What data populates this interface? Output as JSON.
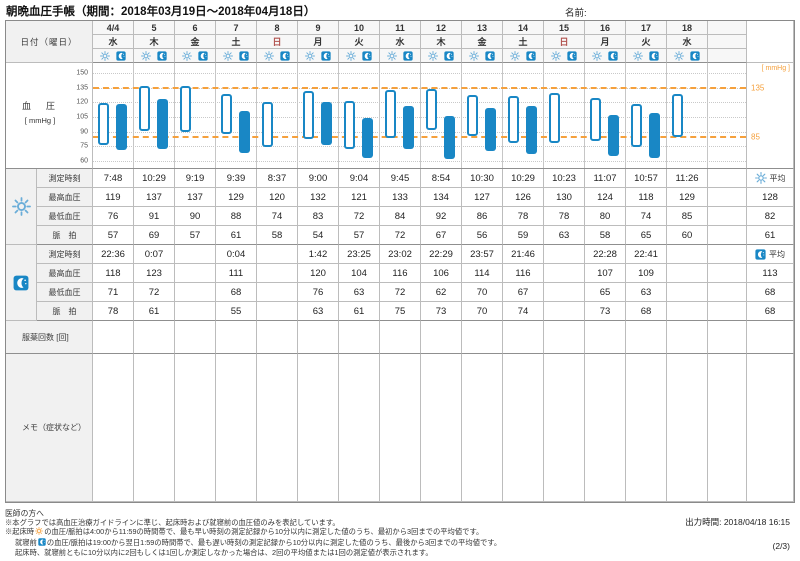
{
  "title": "朝晩血圧手帳（期間：2018年03月19日～2018年04月18日）",
  "name_label": "名前:",
  "header": {
    "date_label": "日付（曜日）",
    "days": [
      {
        "date": "4/4",
        "dow": "水",
        "sunday": false
      },
      {
        "date": "5",
        "dow": "木",
        "sunday": false
      },
      {
        "date": "6",
        "dow": "金",
        "sunday": false
      },
      {
        "date": "7",
        "dow": "土",
        "sunday": false
      },
      {
        "date": "8",
        "dow": "日",
        "sunday": true
      },
      {
        "date": "9",
        "dow": "月",
        "sunday": false
      },
      {
        "date": "10",
        "dow": "火",
        "sunday": false
      },
      {
        "date": "11",
        "dow": "水",
        "sunday": false
      },
      {
        "date": "12",
        "dow": "木",
        "sunday": false
      },
      {
        "date": "13",
        "dow": "金",
        "sunday": false
      },
      {
        "date": "14",
        "dow": "土",
        "sunday": false
      },
      {
        "date": "15",
        "dow": "日",
        "sunday": true
      },
      {
        "date": "16",
        "dow": "月",
        "sunday": false
      },
      {
        "date": "17",
        "dow": "火",
        "sunday": false
      },
      {
        "date": "18",
        "dow": "水",
        "sunday": false
      }
    ]
  },
  "chart": {
    "type": "range-bar",
    "ylabel": "血　圧",
    "yunit": "[ mmHg ]",
    "unit_label": "[ mmHg ]",
    "ymin": 60,
    "ymax": 150,
    "yticks": [
      150,
      135,
      120,
      105,
      90,
      75,
      60
    ],
    "thresholds": [
      {
        "value": 135,
        "label": "135"
      },
      {
        "value": 85,
        "label": "85"
      }
    ]
  },
  "row_labels": {
    "time": "測定時刻",
    "systolic": "最高血圧",
    "diastolic": "最低血圧",
    "pulse": "脈　拍",
    "average": "平均"
  },
  "sections": {
    "morning": {
      "times": [
        "7:48",
        "10:29",
        "9:19",
        "9:39",
        "8:37",
        "9:00",
        "9:04",
        "9:45",
        "8:54",
        "10:30",
        "10:29",
        "10:23",
        "11:07",
        "10:57",
        "11:26"
      ],
      "systolic": [
        119,
        137,
        137,
        129,
        120,
        132,
        121,
        133,
        134,
        127,
        126,
        130,
        124,
        118,
        129
      ],
      "diastolic": [
        76,
        91,
        90,
        88,
        74,
        83,
        72,
        84,
        92,
        86,
        78,
        78,
        80,
        74,
        85
      ],
      "pulse": [
        57,
        69,
        57,
        61,
        58,
        54,
        57,
        72,
        67,
        56,
        59,
        63,
        58,
        65,
        60
      ],
      "avg": {
        "systolic": 128,
        "diastolic": 82,
        "pulse": 61
      }
    },
    "evening": {
      "times": [
        "22:36",
        "0:07",
        "",
        "0:04",
        "",
        "1:42",
        "23:25",
        "23:02",
        "22:29",
        "23:57",
        "21:46",
        "",
        "22:28",
        "22:41",
        ""
      ],
      "systolic": [
        118,
        123,
        null,
        111,
        null,
        120,
        104,
        116,
        106,
        114,
        116,
        null,
        107,
        109,
        null
      ],
      "diastolic": [
        71,
        72,
        null,
        68,
        null,
        76,
        63,
        72,
        62,
        70,
        67,
        null,
        65,
        63,
        null
      ],
      "pulse": [
        78,
        61,
        null,
        55,
        null,
        63,
        61,
        75,
        73,
        70,
        74,
        null,
        73,
        68,
        null
      ],
      "avg": {
        "systolic": 113,
        "diastolic": 68,
        "pulse": 68
      }
    }
  },
  "medication_label": "服薬回数 [回]",
  "memo_label": "メモ（症状など）",
  "footer": {
    "doctor_heading": "医師の方へ",
    "line1": "※本グラフでは高血圧治療ガイドラインに準じ、起床時および就寝前の血圧値のみを表記しています。",
    "line2_pre": "※起床時",
    "line2_post": "の血圧/脈拍は4:00から11:59の時間帯で、最も早い時刻の測定記録から10分以内に測定した値のうち、最初から3回までの平均値です。",
    "line3_pre": "就寝前",
    "line3_post": "の血圧/脈拍は19:00から翌日1:59の時間帯で、最も遅い時刻の測定記録から10分以内に測定した値のうち、最後から3回までの平均値です。",
    "line4": "起床時、就寝前ともに10分以内に2回もしくは1回しか測定しなかった場合は、2回の平均値または1回の測定値が表示されます。",
    "output_time": "出力時間: 2018/04/18 16:15",
    "page": "(2/3)"
  },
  "colors": {
    "bar_blue": "#1987c5",
    "sun_blue": "#6aadd8",
    "orange": "#f5a03c",
    "sunday_red": "#b25450"
  }
}
